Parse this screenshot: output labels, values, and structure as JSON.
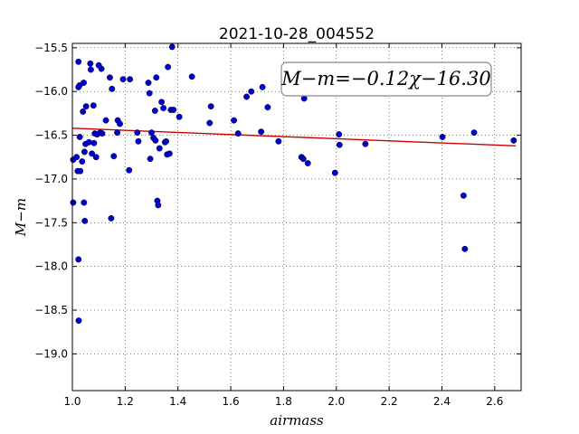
{
  "chart_data": {
    "type": "scatter",
    "title": "2021-10-28_004552",
    "xlabel": "airmass",
    "ylabel": "M−m",
    "annotation": "M−m=−0.12χ−16.30",
    "xlim": [
      1.0,
      2.7
    ],
    "ylim": [
      -15.45,
      -19.42
    ],
    "y_inverted": true,
    "grid": true,
    "x_ticks": [
      1.0,
      1.2,
      1.4,
      1.6,
      1.8,
      2.0,
      2.2,
      2.4,
      2.6
    ],
    "x_tick_labels": [
      "1.0",
      "1.2",
      "1.4",
      "1.6",
      "1.8",
      "2.0",
      "2.2",
      "2.4",
      "2.6"
    ],
    "y_ticks": [
      -15.5,
      -16.0,
      -16.5,
      -17.0,
      -17.5,
      -18.0,
      -18.5,
      -19.0
    ],
    "y_tick_labels": [
      "−15.5",
      "−16.0",
      "−16.5",
      "−17.0",
      "−17.5",
      "−18.0",
      "−18.5",
      "−19.0"
    ],
    "colors": {
      "points": "#0000cc",
      "fit": "#cc0000"
    },
    "fit": {
      "slope": -0.12,
      "intercept": -16.3,
      "x_range": [
        1.0,
        2.68
      ]
    },
    "series": [
      {
        "points": [
          [
            1.003,
            -16.78
          ],
          [
            1.003,
            -17.27
          ],
          [
            1.016,
            -16.75
          ],
          [
            1.02,
            -16.91
          ],
          [
            1.023,
            -15.95
          ],
          [
            1.023,
            -15.66
          ],
          [
            1.027,
            -15.93
          ],
          [
            1.028,
            -16.52
          ],
          [
            1.023,
            -17.92
          ],
          [
            1.024,
            -18.62
          ],
          [
            1.03,
            -16.91
          ],
          [
            1.037,
            -16.8
          ],
          [
            1.04,
            -16.23
          ],
          [
            1.043,
            -15.9
          ],
          [
            1.044,
            -17.27
          ],
          [
            1.046,
            -16.69
          ],
          [
            1.047,
            -17.48
          ],
          [
            1.05,
            -16.6
          ],
          [
            1.052,
            -16.17
          ],
          [
            1.063,
            -16.58
          ],
          [
            1.068,
            -15.68
          ],
          [
            1.07,
            -15.75
          ],
          [
            1.074,
            -16.71
          ],
          [
            1.08,
            -16.16
          ],
          [
            1.082,
            -16.59
          ],
          [
            1.085,
            -16.48
          ],
          [
            1.09,
            -16.75
          ],
          [
            1.094,
            -16.49
          ],
          [
            1.1,
            -15.7
          ],
          [
            1.105,
            -16.47
          ],
          [
            1.11,
            -15.74
          ],
          [
            1.113,
            -16.48
          ],
          [
            1.127,
            -16.33
          ],
          [
            1.142,
            -15.84
          ],
          [
            1.147,
            -17.45
          ],
          [
            1.15,
            -15.97
          ],
          [
            1.157,
            -16.74
          ],
          [
            1.17,
            -16.47
          ],
          [
            1.172,
            -16.33
          ],
          [
            1.18,
            -16.37
          ],
          [
            1.192,
            -15.86
          ],
          [
            1.215,
            -16.9
          ],
          [
            1.218,
            -15.86
          ],
          [
            1.246,
            -16.47
          ],
          [
            1.25,
            -16.57
          ],
          [
            1.288,
            -15.9
          ],
          [
            1.292,
            -16.02
          ],
          [
            1.295,
            -16.77
          ],
          [
            1.3,
            -16.47
          ],
          [
            1.307,
            -16.53
          ],
          [
            1.313,
            -16.22
          ],
          [
            1.315,
            -16.56
          ],
          [
            1.318,
            -15.84
          ],
          [
            1.322,
            -17.25
          ],
          [
            1.325,
            -17.3
          ],
          [
            1.33,
            -16.65
          ],
          [
            1.338,
            -16.12
          ],
          [
            1.345,
            -16.19
          ],
          [
            1.351,
            -16.58
          ],
          [
            1.355,
            -16.57
          ],
          [
            1.359,
            -16.72
          ],
          [
            1.362,
            -15.72
          ],
          [
            1.368,
            -16.71
          ],
          [
            1.373,
            -16.21
          ],
          [
            1.378,
            -15.49
          ],
          [
            1.383,
            -16.21
          ],
          [
            1.405,
            -16.29
          ],
          [
            1.453,
            -15.83
          ],
          [
            1.52,
            -16.36
          ],
          [
            1.525,
            -16.17
          ],
          [
            1.612,
            -16.33
          ],
          [
            1.628,
            -16.48
          ],
          [
            1.66,
            -16.06
          ],
          [
            1.678,
            -16.0
          ],
          [
            1.715,
            -16.46
          ],
          [
            1.72,
            -15.95
          ],
          [
            1.74,
            -16.18
          ],
          [
            1.781,
            -16.57
          ],
          [
            1.868,
            -16.75
          ],
          [
            1.875,
            -16.77
          ],
          [
            1.878,
            -16.08
          ],
          [
            1.892,
            -16.82
          ],
          [
            1.995,
            -16.93
          ],
          [
            2.01,
            -16.49
          ],
          [
            2.012,
            -16.61
          ],
          [
            2.11,
            -16.6
          ],
          [
            2.402,
            -16.52
          ],
          [
            2.482,
            -17.19
          ],
          [
            2.487,
            -17.8
          ],
          [
            2.522,
            -16.47
          ],
          [
            2.672,
            -16.56
          ]
        ]
      }
    ]
  }
}
